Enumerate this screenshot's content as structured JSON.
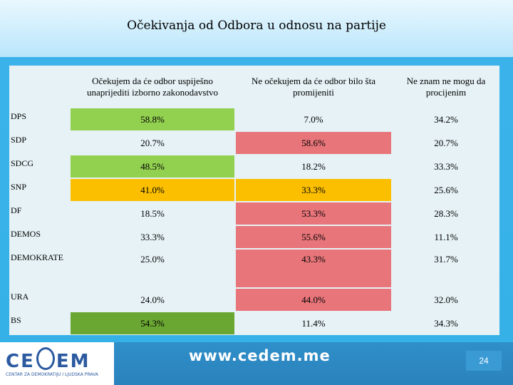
{
  "title": "Očekivanja od Odbora u odnosu na partije",
  "table": {
    "headers": [
      "",
      "Očekujem da će odbor uspiješno unaprijediti izborno zakonodavstvo",
      "Ne očekujem da će odbor bilo šta promijeniti",
      "Ne znam ne mogu da procijenim"
    ],
    "rows": [
      {
        "party": "DPS",
        "v1": "58.8%",
        "v2": "7.0%",
        "v3": "34.2%"
      },
      {
        "party": "SDP",
        "v1": "20.7%",
        "v2": "58.6%",
        "v3": "20.7%"
      },
      {
        "party": "SDCG",
        "v1": "48.5%",
        "v2": "18.2%",
        "v3": "33.3%"
      },
      {
        "party": "SNP",
        "v1": "41.0%",
        "v2": "33.3%",
        "v3": "25.6%"
      },
      {
        "party": "DF",
        "v1": "18.5%",
        "v2": "53.3%",
        "v3": "28.3%"
      },
      {
        "party": "DEMOS",
        "v1": "33.3%",
        "v2": "55.6%",
        "v3": "11.1%"
      },
      {
        "party": "DEMOKRATE",
        "v1": "25.0%",
        "v2": "43.3%",
        "v3": "31.7%"
      },
      {
        "party": "URA",
        "v1": "24.0%",
        "v2": "44.0%",
        "v3": "32.0%"
      },
      {
        "party": "BS",
        "v1": "54.3%",
        "v2": "11.4%",
        "v3": "34.3%"
      }
    ]
  },
  "colors": {
    "green": "#92d050",
    "dark_green": "#6aa632",
    "red": "#e8757a",
    "amber": "#fbbf00"
  },
  "footer": {
    "logo_text_left": "CE",
    "logo_text_right": "EM",
    "logo_subtitle": "CENTAR ZA DEMOKRATIJU I LJUDSKA PRAVA",
    "website": "www.cedem.me",
    "page_number": "24"
  }
}
